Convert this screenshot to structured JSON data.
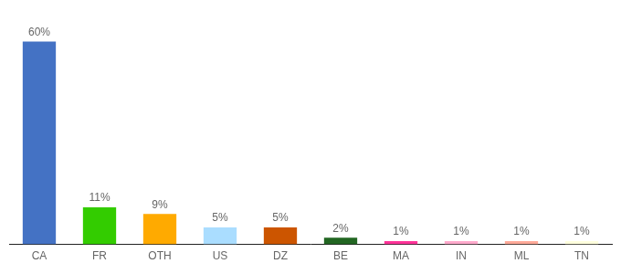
{
  "chart_data": {
    "type": "bar",
    "categories": [
      "CA",
      "FR",
      "OTH",
      "US",
      "DZ",
      "BE",
      "MA",
      "IN",
      "ML",
      "TN"
    ],
    "values": [
      60,
      11,
      9,
      5,
      5,
      2,
      1,
      1,
      1,
      1
    ],
    "value_labels": [
      "60%",
      "11%",
      "9%",
      "5%",
      "5%",
      "2%",
      "1%",
      "1%",
      "1%",
      "1%"
    ],
    "colors": [
      "#4472c4",
      "#33cc00",
      "#ffaa00",
      "#aaddff",
      "#cc5500",
      "#226622",
      "#ff3399",
      "#ffaacc",
      "#ffaa99",
      "#ffffdd"
    ],
    "ylim": [
      0,
      68
    ],
    "grid": false,
    "data_labels": true,
    "tick_labels": "x"
  }
}
